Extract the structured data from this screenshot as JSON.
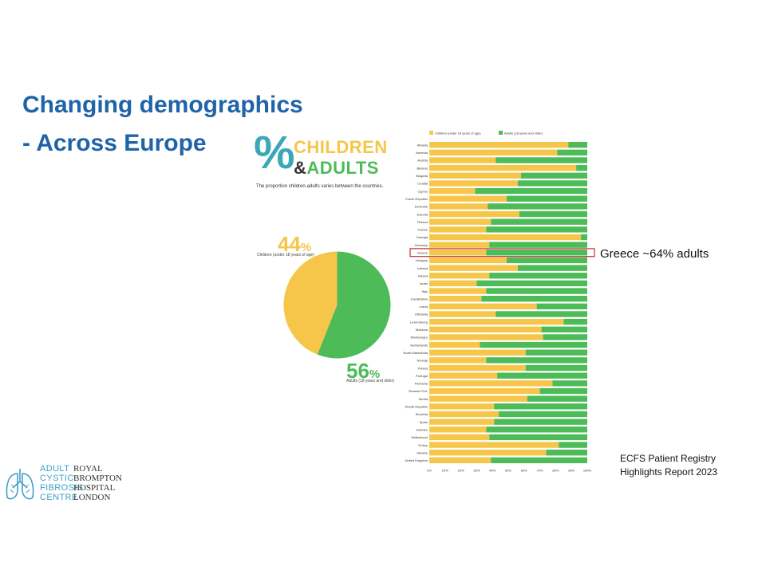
{
  "slide": {
    "title_line1": "Changing demographics",
    "title_line2": "- Across Europe",
    "annotation": "Greece ~64% adults",
    "source_line1": "ECFS Patient Registry",
    "source_line2": "Highlights Report 2023"
  },
  "infographic": {
    "percent_sign": "%",
    "children_word": "CHILDREN",
    "amp": "&",
    "adults_word": "ADULTS",
    "caption": "The proportion children-adults varies between the countries.",
    "children_value": "44",
    "children_unit": "%",
    "children_sub": "Children (under 18 years of age)",
    "adults_value": "56",
    "adults_unit": "%",
    "adults_sub": "Adults (18 years and older)"
  },
  "logo": {
    "left_lines": [
      "ADULT",
      "CYSTIC",
      "FIBROSIS",
      "CENTRE"
    ],
    "right_lines": [
      "ROYAL",
      "BROMPTON",
      "HOSPITAL",
      "LONDON"
    ]
  },
  "colors": {
    "children": "#f6c64a",
    "adults": "#4dbb58",
    "title": "#1f63a8",
    "highlight": "#c0312b"
  },
  "chart_data": [
    {
      "type": "pie",
      "categories": [
        "Children (under 18 years of age)",
        "Adults (18 years and older)"
      ],
      "values": [
        44,
        56
      ]
    },
    {
      "type": "bar",
      "orientation": "horizontal",
      "stacked": true,
      "legend_position": "top",
      "categories": [
        "Albania",
        "Armenia",
        "Austria",
        "Belarus",
        "Bulgaria",
        "Croatia",
        "Cyprus",
        "Czech Republic",
        "Denmark",
        "Estonia",
        "Finland",
        "France",
        "Georgia",
        "Germany",
        "Greece",
        "Hungary",
        "Iceland",
        "Ireland",
        "Israel",
        "Italy",
        "Kazakhstan",
        "Latvia",
        "Lithuania",
        "Luxembourg",
        "Moldova",
        "Montenegro",
        "Netherlands",
        "North Macedonia",
        "Norway",
        "Poland",
        "Portugal",
        "Romania",
        "Russian Fed.",
        "Serbia",
        "Slovak Republic",
        "Slovenia",
        "Spain",
        "Sweden",
        "Switzerland",
        "Turkey",
        "Ukraine",
        "United Kingdom"
      ],
      "series": [
        {
          "name": "Children (under 18 years of age)",
          "color": "#f6c64a",
          "values": [
            88,
            81,
            42,
            93,
            58,
            56,
            29,
            49,
            37,
            57,
            39,
            36,
            96,
            38,
            36,
            49,
            56,
            38,
            30,
            36,
            33,
            68,
            42,
            85,
            71,
            72,
            32,
            61,
            36,
            61,
            43,
            78,
            70,
            62,
            41,
            44,
            41,
            36,
            38,
            82,
            74,
            39
          ]
        },
        {
          "name": "Adults (18 years and older)",
          "color": "#4dbb58",
          "values": [
            12,
            19,
            58,
            7,
            42,
            44,
            71,
            51,
            63,
            43,
            61,
            64,
            4,
            62,
            64,
            51,
            44,
            62,
            70,
            64,
            67,
            32,
            58,
            15,
            29,
            28,
            68,
            39,
            64,
            39,
            57,
            22,
            30,
            38,
            59,
            56,
            59,
            64,
            62,
            18,
            26,
            61
          ]
        }
      ],
      "highlight": "Greece",
      "x_ticks": [
        "0%",
        "10%",
        "20%",
        "30%",
        "40%",
        "50%",
        "60%",
        "70%",
        "80%",
        "90%",
        "100%"
      ],
      "xlim": [
        0,
        100
      ]
    }
  ]
}
